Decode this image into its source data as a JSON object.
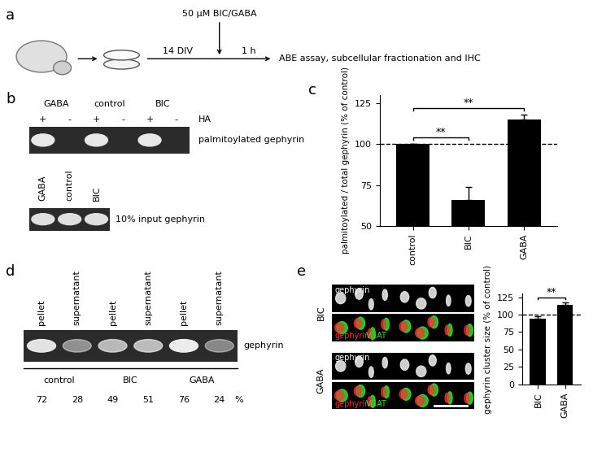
{
  "panel_labels": [
    "a",
    "b",
    "c",
    "d",
    "e"
  ],
  "schematic": {
    "treatment": "50 µM BIC/GABA",
    "culture_time": "14 DIV",
    "incubation": "1 h",
    "readout": "ABE assay, subcellular fractionation and IHC"
  },
  "blot_b": {
    "conditions": [
      "GABA",
      "control",
      "BIC"
    ],
    "hydroxylamine": [
      "+",
      "-"
    ],
    "hydroxylamine_label": "HA",
    "blot_label": "palmitoylated gephyrin",
    "input_conditions": [
      "GABA",
      "control",
      "BIC"
    ],
    "input_label": "10% input gephyrin"
  },
  "chart_data": [
    {
      "type": "bar",
      "categories": [
        "control",
        "BIC",
        "GABA"
      ],
      "values": [
        100,
        66,
        115
      ],
      "error": [
        0,
        8,
        3
      ],
      "color": "#000000",
      "ylabel": "palmitoylated / total gephyrin (% of control)",
      "ylim": [
        50,
        130
      ],
      "yticks": [
        50,
        75,
        100,
        125
      ],
      "reference_line": 100,
      "significance": [
        {
          "pair": [
            "control",
            "BIC"
          ],
          "text": "**"
        },
        {
          "pair": [
            "control",
            "GABA"
          ],
          "text": "**"
        }
      ]
    },
    {
      "type": "bar",
      "categories": [
        "BIC",
        "GABA"
      ],
      "values": [
        94,
        114
      ],
      "error": [
        4,
        4
      ],
      "color": "#000000",
      "ylabel": "gephyrin cluster size (% of control)",
      "ylim": [
        0,
        130
      ],
      "yticks": [
        0,
        25,
        50,
        75,
        100,
        125
      ],
      "reference_line": 100,
      "significance": [
        {
          "pair": [
            "BIC",
            "GABA"
          ],
          "text": "**"
        }
      ]
    }
  ],
  "blot_d": {
    "fractions": [
      "pellet",
      "supernatant"
    ],
    "conditions": [
      "control",
      "BIC",
      "GABA"
    ],
    "percent": {
      "pellet": [
        72,
        49,
        76
      ],
      "supernatant": [
        28,
        51,
        24
      ]
    },
    "unit": "%",
    "blot_label": "gephyrin"
  },
  "images_e": {
    "conditions": [
      "BIC",
      "GABA"
    ],
    "channels": [
      {
        "name": "gephyrin",
        "color": "#ff3030"
      },
      {
        "name": "VGAT",
        "color": "#30e030"
      }
    ]
  }
}
